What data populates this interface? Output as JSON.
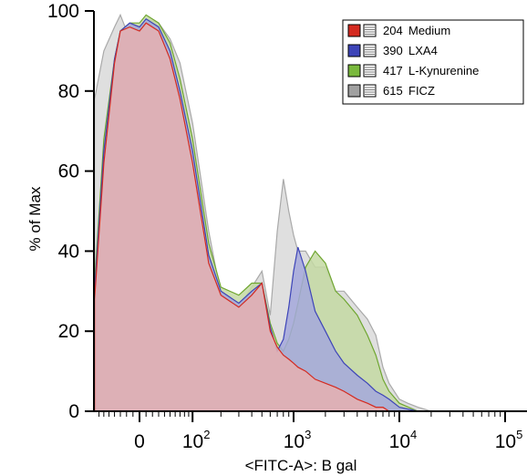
{
  "chart_data": {
    "type": "area",
    "title": "",
    "xlabel": "<FITC-A>: B gal",
    "ylabel": "% of Max",
    "x_scale": "biexponential",
    "xlim": [
      -80,
      200000
    ],
    "ylim": [
      0,
      100
    ],
    "grid": false,
    "legend_position": "top-right",
    "y_ticks": [
      "0",
      "20",
      "40",
      "60",
      "80",
      "100"
    ],
    "x_ticks": [
      {
        "label": "0",
        "value": 0
      },
      {
        "base": "10",
        "exp": "2",
        "value": 100
      },
      {
        "base": "10",
        "exp": "3",
        "value": 1000
      },
      {
        "base": "10",
        "exp": "4",
        "value": 10000
      },
      {
        "base": "10",
        "exp": "5",
        "value": 100000
      }
    ],
    "series": [
      {
        "name": "615 FICZ",
        "legend_number": "615",
        "legend_name": "FICZ",
        "fill": "#d9d9d9",
        "stroke": "#a9a9a9",
        "x": [
          -80,
          -60,
          -40,
          -30,
          -15,
          0,
          10,
          30,
          50,
          70,
          100,
          150,
          200,
          300,
          400,
          500,
          600,
          700,
          800,
          900,
          1000,
          1100,
          1300,
          1600,
          2000,
          2500,
          3000,
          4000,
          5000,
          6000,
          7000,
          8000,
          10000,
          12000,
          15000,
          20000
        ],
        "values": [
          78,
          90,
          96,
          99,
          93,
          96,
          98,
          97,
          93,
          87,
          72,
          45,
          29,
          26,
          31,
          35,
          24,
          45,
          58,
          50,
          44,
          40,
          40,
          36,
          36,
          30,
          30,
          26,
          23,
          19,
          11,
          7,
          3,
          2,
          1,
          0
        ]
      },
      {
        "name": "417 L-Kynurenine",
        "legend_number": "417",
        "legend_name": "L-Kynurenine",
        "fill": "#c4d9a3",
        "stroke": "#6fa630",
        "x": [
          -80,
          -60,
          -40,
          -30,
          -15,
          0,
          10,
          30,
          50,
          70,
          100,
          150,
          200,
          300,
          400,
          500,
          600,
          700,
          800,
          900,
          1000,
          1100,
          1300,
          1600,
          2000,
          2500,
          3000,
          4000,
          5000,
          6000,
          7000,
          8000,
          10000,
          15000
        ],
        "values": [
          32,
          68,
          88,
          95,
          97,
          97,
          99,
          97,
          92,
          83,
          68,
          42,
          31,
          29,
          32,
          32,
          22,
          17,
          15,
          18,
          22,
          27,
          36,
          40,
          37,
          30,
          28,
          24,
          19,
          14,
          8,
          5,
          2,
          0
        ]
      },
      {
        "name": "390 LXA4",
        "legend_number": "390",
        "legend_name": "LXA4",
        "fill": "#a5a8dc",
        "stroke": "#3d44b8",
        "x": [
          -80,
          -60,
          -40,
          -30,
          -15,
          0,
          10,
          30,
          50,
          70,
          100,
          150,
          200,
          300,
          400,
          500,
          600,
          700,
          800,
          900,
          1000,
          1100,
          1300,
          1600,
          2000,
          2500,
          3000,
          4000,
          5000,
          6000,
          7000,
          8000,
          10000,
          15000
        ],
        "values": [
          30,
          65,
          88,
          95,
          97,
          96,
          98,
          96,
          90,
          80,
          65,
          39,
          30,
          27,
          30,
          32,
          21,
          15,
          18,
          26,
          35,
          41,
          35,
          25,
          20,
          15,
          12,
          9,
          7,
          5,
          4,
          3,
          1,
          0
        ]
      },
      {
        "name": "204 Medium",
        "legend_number": "204",
        "legend_name": "Medium",
        "fill": "#e6b0b0",
        "stroke": "#d42a20",
        "x": [
          -80,
          -60,
          -40,
          -30,
          -15,
          0,
          10,
          30,
          50,
          70,
          100,
          150,
          200,
          300,
          400,
          500,
          600,
          700,
          800,
          900,
          1000,
          1100,
          1300,
          1600,
          2000,
          2500,
          3000,
          4000,
          5000,
          6000,
          7000,
          8000,
          10000
        ],
        "values": [
          28,
          62,
          87,
          95,
          96,
          95,
          97,
          95,
          88,
          78,
          62,
          37,
          29,
          26,
          29,
          32,
          20,
          16,
          14,
          13,
          12,
          11,
          10,
          8,
          7,
          6,
          5,
          3,
          2,
          1,
          1,
          0,
          0
        ]
      }
    ],
    "legend": [
      {
        "number": "204",
        "name": "Medium",
        "color": "#d42a20"
      },
      {
        "number": "390",
        "name": "LXA4",
        "color": "#3d44b8"
      },
      {
        "number": "417",
        "name": "L-Kynurenine",
        "color": "#7ab93d"
      },
      {
        "number": "615",
        "name": "FICZ",
        "color": "#a0a0a0"
      }
    ]
  }
}
